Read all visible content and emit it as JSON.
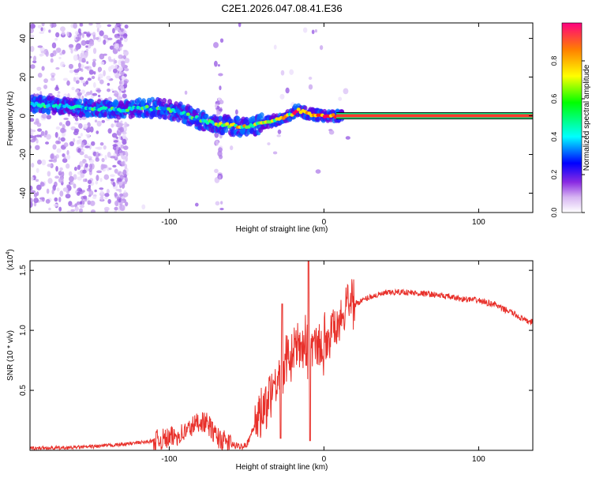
{
  "chart_data": [
    {
      "type": "heatmap",
      "title": "C2E1.2026.047.08.41.E36",
      "xlabel": "Height of straight line (km)",
      "ylabel": "Frequency (Hz)",
      "xlim": [
        -190,
        135
      ],
      "ylim": [
        -50,
        48
      ],
      "xticks": [
        -100,
        0,
        100
      ],
      "xtick_labels": [
        "-100",
        "0",
        "100"
      ],
      "yticks": [
        -40,
        -20,
        0,
        20,
        40
      ],
      "ytick_labels": [
        "-40",
        "-20",
        "0",
        "20",
        "40"
      ],
      "ridge": {
        "x": [
          -190,
          -170,
          -150,
          -130,
          -120,
          -110,
          -100,
          -90,
          -80,
          -70,
          -60,
          -50,
          -45,
          -40,
          -30,
          -20,
          -18,
          -10,
          0,
          10,
          135
        ],
        "y": [
          6,
          5,
          4,
          3,
          4,
          4,
          3,
          1,
          -2,
          -4,
          -5,
          -6,
          -5,
          -4,
          -2,
          1,
          3,
          1,
          0,
          0,
          0
        ]
      },
      "legend": "right",
      "colorbar": {
        "label": "Normalized spectral amplitude",
        "range": [
          0.0,
          1.0
        ],
        "ticks": [
          0.0,
          0.2,
          0.4,
          0.6,
          0.8
        ],
        "tick_labels": [
          "0.0",
          "0.2",
          "0.4",
          "0.6",
          "0.8"
        ]
      }
    },
    {
      "type": "line",
      "xlabel": "Height of straight line (km)",
      "ylabel": "SNR (10 * v/v)",
      "scale_label": "(x10",
      "scale_exponent": "4",
      "scale_close": ")",
      "xlim": [
        -190,
        135
      ],
      "ylim": [
        0,
        1.58
      ],
      "xticks": [
        -100,
        0,
        100
      ],
      "xtick_labels": [
        "-100",
        "0",
        "100"
      ],
      "yticks": [
        0.5,
        1.0,
        1.5
      ],
      "ytick_labels": [
        "0.5",
        "1.0",
        "1.5"
      ],
      "color": "#e8302a",
      "series": [
        {
          "name": "SNR",
          "x": [
            -190,
            -170,
            -150,
            -130,
            -115,
            -100,
            -90,
            -85,
            -80,
            -75,
            -70,
            -65,
            -60,
            -55,
            -50,
            -45,
            -40,
            -35,
            -30,
            -25,
            -20,
            -15,
            -10,
            -5,
            0,
            5,
            10,
            15,
            20,
            25,
            30,
            40,
            50,
            60,
            70,
            80,
            90,
            100,
            105,
            110,
            115,
            120,
            125,
            130,
            135
          ],
          "values": [
            0.02,
            0.02,
            0.03,
            0.05,
            0.07,
            0.1,
            0.15,
            0.2,
            0.25,
            0.22,
            0.12,
            0.08,
            0.05,
            0.03,
            0.05,
            0.2,
            0.35,
            0.5,
            0.6,
            0.7,
            0.8,
            0.9,
            0.85,
            0.85,
            0.9,
            1.0,
            1.1,
            1.18,
            1.22,
            1.25,
            1.28,
            1.31,
            1.32,
            1.31,
            1.3,
            1.28,
            1.26,
            1.25,
            1.23,
            1.22,
            1.18,
            1.16,
            1.12,
            1.08,
            1.07
          ]
        }
      ]
    }
  ]
}
